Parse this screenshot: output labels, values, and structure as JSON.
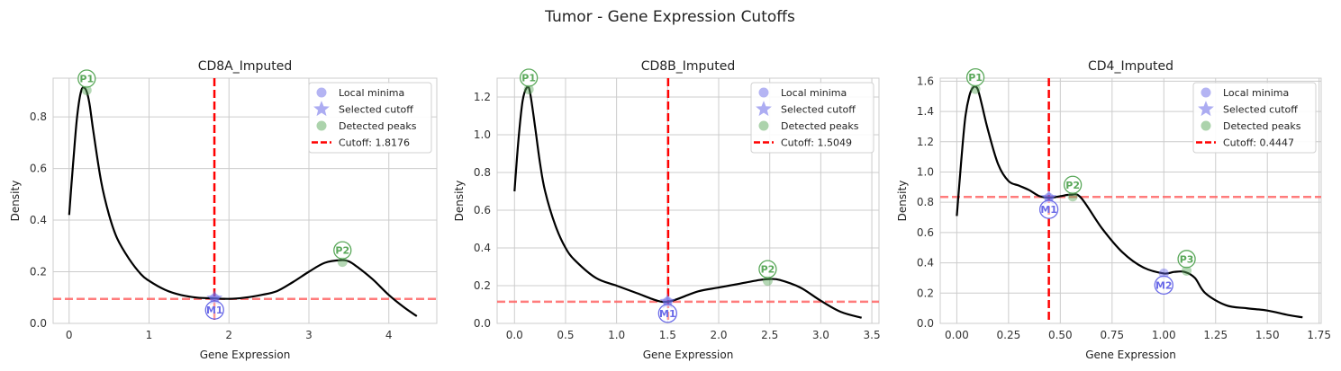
{
  "figure": {
    "suptitle": "Tumor - Gene Expression Cutoffs"
  },
  "colors": {
    "curve": "#000000",
    "cutoff": "#ff0000",
    "hline": "#ff6666",
    "minima": "#6a6ae8",
    "peaks": "#5aa85a",
    "grid": "#cccccc",
    "frame": "#cccccc"
  },
  "legend_labels": [
    "Local minima",
    "Selected cutoff",
    "Detected peaks"
  ],
  "chart_data": [
    {
      "type": "line",
      "title": "CD8A_Imputed",
      "xlabel": "Gene Expression",
      "ylabel": "Density",
      "xlim": [
        -0.2,
        4.6
      ],
      "ylim": [
        0,
        0.95
      ],
      "xticks": [
        0,
        1,
        2,
        3,
        4
      ],
      "xtick_labels": [
        "0",
        "1",
        "2",
        "3",
        "4"
      ],
      "yticks": [
        0,
        0.2,
        0.4,
        0.6,
        0.8
      ],
      "ytick_labels": [
        "0.0",
        "0.2",
        "0.4",
        "0.6",
        "0.8"
      ],
      "grid": true,
      "legend_position": "upper-right",
      "cutoff_label": "Cutoff: 1.8176",
      "cutoff": 1.8176,
      "hline": 0.095,
      "x": [
        0,
        0.05,
        0.1,
        0.15,
        0.2,
        0.25,
        0.3,
        0.4,
        0.5,
        0.6,
        0.75,
        0.9,
        1.0,
        1.2,
        1.4,
        1.6,
        1.8,
        2.0,
        2.2,
        2.4,
        2.6,
        2.8,
        3.0,
        3.2,
        3.4,
        3.5,
        3.6,
        3.8,
        4.0,
        4.2,
        4.35
      ],
      "y": [
        0.42,
        0.62,
        0.8,
        0.9,
        0.91,
        0.86,
        0.75,
        0.55,
        0.42,
        0.33,
        0.25,
        0.19,
        0.165,
        0.13,
        0.11,
        0.1,
        0.097,
        0.095,
        0.1,
        0.11,
        0.125,
        0.16,
        0.2,
        0.235,
        0.245,
        0.24,
        0.22,
        0.17,
        0.11,
        0.06,
        0.028
      ],
      "peaks": [
        {
          "label": "P1",
          "x": 0.22,
          "y": 0.91
        },
        {
          "label": "P2",
          "x": 3.42,
          "y": 0.245
        }
      ],
      "minima": [
        {
          "label": "M1",
          "x": 1.82,
          "y": 0.097
        }
      ]
    },
    {
      "type": "line",
      "title": "CD8B_Imputed",
      "xlabel": "Gene Expression",
      "ylabel": "Density",
      "xlim": [
        -0.17,
        3.57
      ],
      "ylim": [
        0,
        1.3
      ],
      "xticks": [
        0,
        0.5,
        1,
        1.5,
        2,
        2.5,
        3,
        3.5
      ],
      "xtick_labels": [
        "0.0",
        "0.5",
        "1.0",
        "1.5",
        "2.0",
        "2.5",
        "3.0",
        "3.5"
      ],
      "yticks": [
        0,
        0.2,
        0.4,
        0.6,
        0.8,
        1.0,
        1.2
      ],
      "ytick_labels": [
        "0.0",
        "0.2",
        "0.4",
        "0.6",
        "0.8",
        "1.0",
        "1.2"
      ],
      "grid": true,
      "legend_position": "upper-right",
      "cutoff_label": "Cutoff: 1.5049",
      "cutoff": 1.5049,
      "hline": 0.115,
      "x": [
        0,
        0.04,
        0.08,
        0.12,
        0.15,
        0.2,
        0.25,
        0.3,
        0.4,
        0.5,
        0.6,
        0.8,
        1.0,
        1.2,
        1.4,
        1.5,
        1.6,
        1.8,
        2.0,
        2.2,
        2.4,
        2.5,
        2.6,
        2.8,
        3.0,
        3.2,
        3.4
      ],
      "y": [
        0.7,
        0.98,
        1.18,
        1.25,
        1.23,
        1.05,
        0.85,
        0.7,
        0.52,
        0.4,
        0.33,
        0.24,
        0.2,
        0.16,
        0.12,
        0.115,
        0.13,
        0.17,
        0.19,
        0.21,
        0.23,
        0.235,
        0.23,
        0.19,
        0.12,
        0.06,
        0.03
      ],
      "peaks": [
        {
          "label": "P1",
          "x": 0.14,
          "y": 1.25
        },
        {
          "label": "P2",
          "x": 2.48,
          "y": 0.235
        }
      ],
      "minima": [
        {
          "label": "M1",
          "x": 1.5,
          "y": 0.115
        }
      ]
    },
    {
      "type": "line",
      "title": "CD4_Imputed",
      "xlabel": "Gene Expression",
      "ylabel": "Density",
      "xlim": [
        -0.08,
        1.76
      ],
      "ylim": [
        0,
        1.62
      ],
      "xticks": [
        0,
        0.25,
        0.5,
        0.75,
        1.0,
        1.25,
        1.5,
        1.75
      ],
      "xtick_labels": [
        "0.00",
        "0.25",
        "0.50",
        "0.75",
        "1.00",
        "1.25",
        "1.50",
        "1.75"
      ],
      "yticks": [
        0,
        0.2,
        0.4,
        0.6,
        0.8,
        1.0,
        1.2,
        1.4,
        1.6
      ],
      "ytick_labels": [
        "0.0",
        "0.2",
        "0.4",
        "0.6",
        "0.8",
        "1.0",
        "1.2",
        "1.4",
        "1.6"
      ],
      "grid": true,
      "legend_position": "upper-right",
      "cutoff_label": "Cutoff: 0.4447",
      "cutoff": 0.4447,
      "hline": 0.835,
      "x": [
        0,
        0.02,
        0.04,
        0.06,
        0.08,
        0.1,
        0.12,
        0.15,
        0.2,
        0.25,
        0.3,
        0.35,
        0.4,
        0.45,
        0.5,
        0.55,
        0.6,
        0.7,
        0.8,
        0.9,
        1.0,
        1.05,
        1.1,
        1.15,
        1.2,
        1.3,
        1.4,
        1.5,
        1.6,
        1.67
      ],
      "y": [
        0.71,
        1.05,
        1.35,
        1.5,
        1.56,
        1.55,
        1.45,
        1.28,
        1.05,
        0.94,
        0.91,
        0.88,
        0.84,
        0.83,
        0.84,
        0.85,
        0.83,
        0.63,
        0.47,
        0.37,
        0.33,
        0.34,
        0.34,
        0.3,
        0.2,
        0.12,
        0.1,
        0.085,
        0.055,
        0.04
      ],
      "peaks": [
        {
          "label": "P1",
          "x": 0.09,
          "y": 1.56
        },
        {
          "label": "P2",
          "x": 0.56,
          "y": 0.85
        },
        {
          "label": "P3",
          "x": 1.11,
          "y": 0.36
        }
      ],
      "minima": [
        {
          "label": "M1",
          "x": 0.4447,
          "y": 0.83
        },
        {
          "label": "M2",
          "x": 1.0,
          "y": 0.33
        }
      ]
    }
  ]
}
